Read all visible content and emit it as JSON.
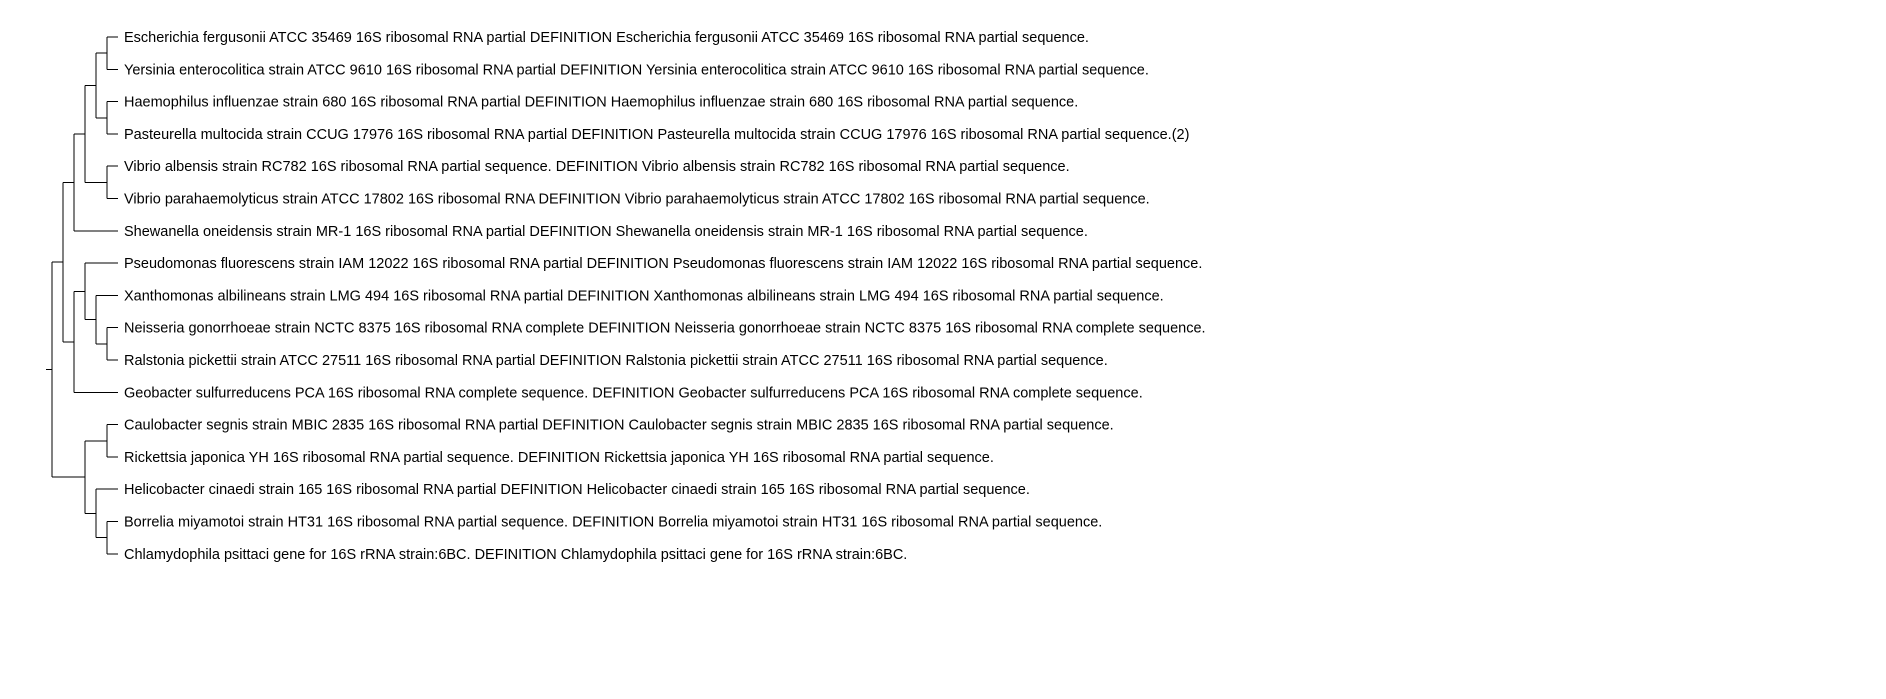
{
  "tree": {
    "leaves": [
      "Escherichia fergusonii ATCC 35469 16S ribosomal RNA partial DEFINITION Escherichia fergusonii ATCC 35469 16S ribosomal RNA partial sequence.",
      "Yersinia enterocolitica strain ATCC 9610 16S ribosomal RNA partial DEFINITION Yersinia enterocolitica strain ATCC 9610 16S ribosomal RNA partial sequence.",
      "Haemophilus influenzae strain 680 16S ribosomal RNA partial DEFINITION Haemophilus influenzae strain 680 16S ribosomal RNA partial sequence.",
      "Pasteurella multocida strain CCUG 17976 16S ribosomal RNA partial DEFINITION Pasteurella multocida strain CCUG 17976 16S ribosomal RNA partial sequence.(2)",
      "Vibrio albensis strain RC782 16S ribosomal RNA partial sequence. DEFINITION Vibrio albensis strain RC782 16S ribosomal RNA partial sequence.",
      "Vibrio parahaemolyticus strain ATCC 17802 16S ribosomal RNA DEFINITION Vibrio parahaemolyticus strain ATCC 17802 16S ribosomal RNA partial sequence.",
      "Shewanella oneidensis strain MR-1 16S ribosomal RNA partial DEFINITION Shewanella oneidensis strain MR-1 16S ribosomal RNA partial sequence.",
      "Pseudomonas fluorescens strain IAM 12022 16S ribosomal RNA partial DEFINITION Pseudomonas fluorescens strain IAM 12022 16S ribosomal RNA partial sequence.",
      "Xanthomonas albilineans strain LMG 494 16S ribosomal RNA partial DEFINITION Xanthomonas albilineans strain LMG 494 16S ribosomal RNA partial sequence.",
      "Neisseria gonorrhoeae strain NCTC 8375 16S ribosomal RNA complete DEFINITION Neisseria gonorrhoeae strain NCTC 8375 16S ribosomal RNA complete sequence.",
      "Ralstonia pickettii strain ATCC 27511 16S ribosomal RNA partial DEFINITION Ralstonia pickettii strain ATCC 27511 16S ribosomal RNA partial sequence.",
      "Geobacter sulfurreducens PCA 16S ribosomal RNA complete sequence. DEFINITION Geobacter sulfurreducens PCA 16S ribosomal RNA complete sequence.",
      "Caulobacter segnis strain MBIC 2835 16S ribosomal RNA partial DEFINITION Caulobacter segnis strain MBIC 2835 16S ribosomal RNA partial sequence.",
      "Rickettsia japonica YH 16S ribosomal RNA partial sequence. DEFINITION Rickettsia japonica YH 16S ribosomal RNA partial sequence.",
      "Helicobacter cinaedi strain 165 16S ribosomal RNA partial DEFINITION Helicobacter cinaedi strain 165 16S ribosomal RNA partial sequence.",
      "Borrelia miyamotoi strain HT31 16S ribosomal RNA partial sequence. DEFINITION Borrelia miyamotoi strain HT31 16S ribosomal RNA partial sequence.",
      "Chlamydophila psittaci gene for 16S rRNA strain:6BC. DEFINITION Chlamydophila psittaci gene for 16S rRNA strain:6BC."
    ],
    "topology": [
      [
        [
          [
            [
              [
                0,
                1
              ],
              [
                2,
                3
              ]
            ],
            [
              4,
              5
            ]
          ],
          6
        ],
        [
          [
            7,
            [
              8,
              [
                9,
                10
              ]
            ]
          ],
          11
        ]
      ],
      [
        [
          12,
          13
        ],
        [
          14,
          [
            15,
            16
          ]
        ]
      ]
    ],
    "line_color": "#000000",
    "background": "#ffffff"
  }
}
